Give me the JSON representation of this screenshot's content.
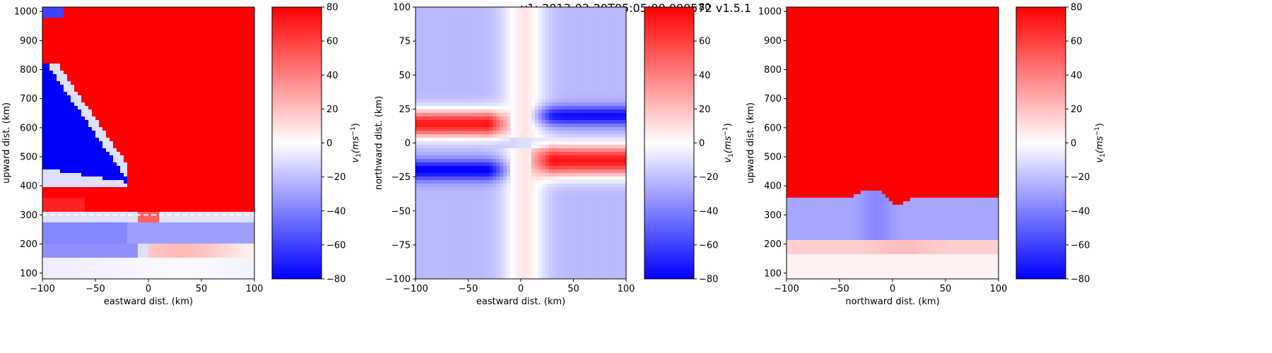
{
  "suptitle": "v1: 2013-02-20T05:05:00.000572  v1.5.1",
  "colors": {
    "negative": "#0000ff",
    "zero": "#ffffff",
    "positive": "#ff0000",
    "dashed_line": "#ffffff"
  },
  "chart_data": [
    {
      "type": "heatmap",
      "id": "panel1",
      "xlabel": "eastward dist. (km)",
      "ylabel": "upward dist. (km)",
      "xlim": [
        -100,
        100
      ],
      "ylim": [
        80,
        1015
      ],
      "xticks": [
        -100,
        -50,
        0,
        50,
        100
      ],
      "yticks": [
        100,
        200,
        300,
        400,
        500,
        600,
        700,
        800,
        900,
        1000
      ],
      "colorbar": {
        "label": "v",
        "label_sub": "1",
        "label_rest": "(ms",
        "label_sup": "−1",
        "label_end": ")",
        "vmin": -80,
        "vmax": 80,
        "ticks": [
          -80,
          -60,
          -40,
          -20,
          0,
          20,
          40,
          60,
          80
        ]
      },
      "annotations": [
        {
          "type": "dashed-hline",
          "y": 300
        }
      ],
      "field": "vertical-ew"
    },
    {
      "type": "heatmap",
      "id": "panel2",
      "xlabel": "eastward dist. (km)",
      "ylabel": "northward dist. (km)",
      "xlim": [
        -100,
        100
      ],
      "ylim": [
        -100,
        100
      ],
      "xticks": [
        -100,
        -50,
        0,
        50,
        100
      ],
      "yticks": [
        -100,
        -75,
        -50,
        -25,
        0,
        25,
        50,
        75,
        100
      ],
      "colorbar": {
        "label": "v",
        "label_sub": "1",
        "label_rest": "(ms",
        "label_sup": "−1",
        "label_end": ")",
        "vmin": -80,
        "vmax": 80,
        "ticks": [
          -80,
          -60,
          -40,
          -20,
          0,
          20,
          40,
          60,
          80
        ]
      },
      "field": "horizontal"
    },
    {
      "type": "heatmap",
      "id": "panel3",
      "xlabel": "northward dist. (km)",
      "ylabel": "upward dist. (km)",
      "xlim": [
        -100,
        100
      ],
      "ylim": [
        80,
        1015
      ],
      "xticks": [
        -100,
        -50,
        0,
        50,
        100
      ],
      "yticks": [
        100,
        200,
        300,
        400,
        500,
        600,
        700,
        800,
        900,
        1000
      ],
      "colorbar": {
        "label": "v",
        "label_sub": "1",
        "label_rest": "(ms",
        "label_sup": "−1",
        "label_end": ")",
        "vmin": -80,
        "vmax": 80,
        "ticks": [
          -80,
          -60,
          -40,
          -20,
          0,
          20,
          40,
          60,
          80
        ]
      },
      "field": "vertical-ns"
    }
  ]
}
